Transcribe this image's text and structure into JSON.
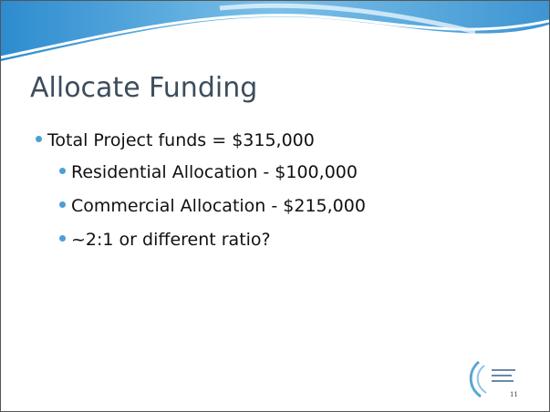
{
  "slide": {
    "title": "Allocate Funding",
    "bullets": [
      {
        "text": "Total Project funds = $315,000",
        "children": [
          "Residential Allocation - $100,000",
          "Commercial Allocation - $215,000",
          "~2:1 or different ratio?"
        ]
      }
    ],
    "page_number": "11"
  }
}
